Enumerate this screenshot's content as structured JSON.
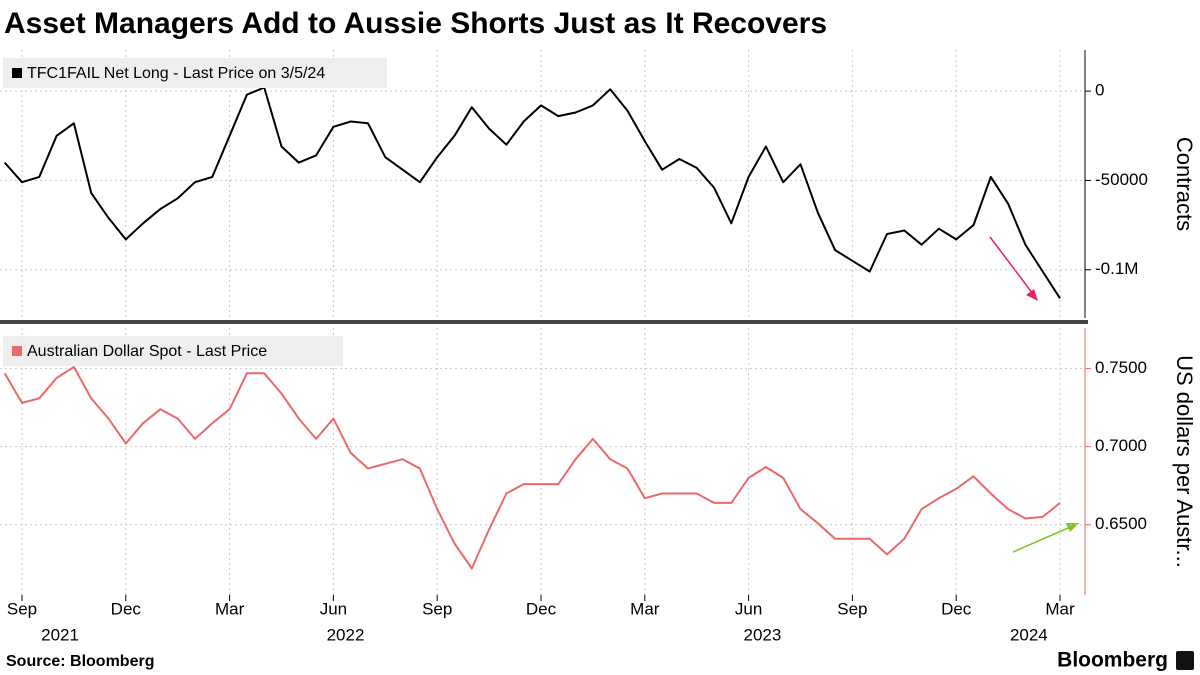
{
  "title": "Asset Managers Add to Aussie Shorts Just as It Recovers",
  "source": "Source: Bloomberg",
  "brand": "Bloomberg",
  "chart_data": [
    {
      "type": "line",
      "series": [
        {
          "name": "TFC1FAIL Net Long - Last Price on 3/5/24",
          "color": "#000000",
          "values": [
            -40000,
            -51000,
            -48000,
            -25000,
            -18000,
            -57000,
            -71000,
            -83000,
            -74000,
            -66000,
            -60000,
            -51000,
            -48000,
            -25000,
            -2000,
            2000,
            -31000,
            -40000,
            -36000,
            -20000,
            -17000,
            -18000,
            -37000,
            -44000,
            -51000,
            -37000,
            -25000,
            -9000,
            -21000,
            -30000,
            -17000,
            -8000,
            -14000,
            -12000,
            -8000,
            1000,
            -11000,
            -28000,
            -44000,
            -38000,
            -43000,
            -54000,
            -74000,
            -48000,
            -31000,
            -51000,
            -41000,
            -68000,
            -89000,
            -95000,
            -101000,
            -80000,
            -78000,
            -86000,
            -77000,
            -83000,
            -75000,
            -48000,
            -63000,
            -86000,
            -101000,
            -116000
          ]
        }
      ],
      "ylabel": "Contracts",
      "ylim": [
        -127000,
        23000
      ],
      "yticks": [
        0,
        -50000,
        {
          "value": -100000,
          "label": "-0.1M"
        }
      ],
      "grid": true
    },
    {
      "type": "line",
      "categories": [
        null,
        "Sep",
        null,
        null,
        null,
        null,
        null,
        "Dec",
        null,
        null,
        null,
        null,
        null,
        "Mar",
        null,
        null,
        null,
        null,
        null,
        "Jun",
        null,
        null,
        null,
        null,
        null,
        "Sep",
        null,
        null,
        null,
        null,
        null,
        "Dec",
        null,
        null,
        null,
        null,
        null,
        "Mar",
        null,
        null,
        null,
        null,
        null,
        "Jun",
        null,
        null,
        null,
        null,
        null,
        "Sep",
        null,
        null,
        null,
        null,
        null,
        "Dec",
        null,
        null,
        null,
        null,
        null,
        "Mar"
      ],
      "x_group_labels": [
        "2021",
        "2022",
        "2023",
        "2024"
      ],
      "series": [
        {
          "name": "Australian Dollar Spot - Last Price",
          "color": "#e86a6a",
          "values": [
            0.747,
            0.728,
            0.731,
            0.744,
            0.751,
            0.731,
            0.718,
            0.702,
            0.715,
            0.724,
            0.718,
            0.705,
            0.715,
            0.724,
            0.747,
            0.747,
            0.734,
            0.718,
            0.705,
            0.718,
            0.696,
            0.686,
            0.689,
            0.692,
            0.686,
            0.66,
            0.638,
            0.622,
            0.647,
            0.67,
            0.676,
            0.676,
            0.676,
            0.692,
            0.705,
            0.692,
            0.686,
            0.667,
            0.67,
            0.67,
            0.67,
            0.664,
            0.664,
            0.68,
            0.687,
            0.68,
            0.66,
            0.651,
            0.641,
            0.641,
            0.641,
            0.631,
            0.641,
            0.66,
            0.667,
            0.673,
            0.681,
            0.67,
            0.66,
            0.654,
            0.655,
            0.664
          ]
        }
      ],
      "ylabel": "US dollars per Austr...",
      "ylim": [
        0.605,
        0.776
      ],
      "yticks": [
        {
          "value": 0.75,
          "label": "0.7500"
        },
        {
          "value": 0.7,
          "label": "0.7000"
        },
        {
          "value": 0.65,
          "label": "0.6500"
        }
      ],
      "grid": true
    }
  ]
}
